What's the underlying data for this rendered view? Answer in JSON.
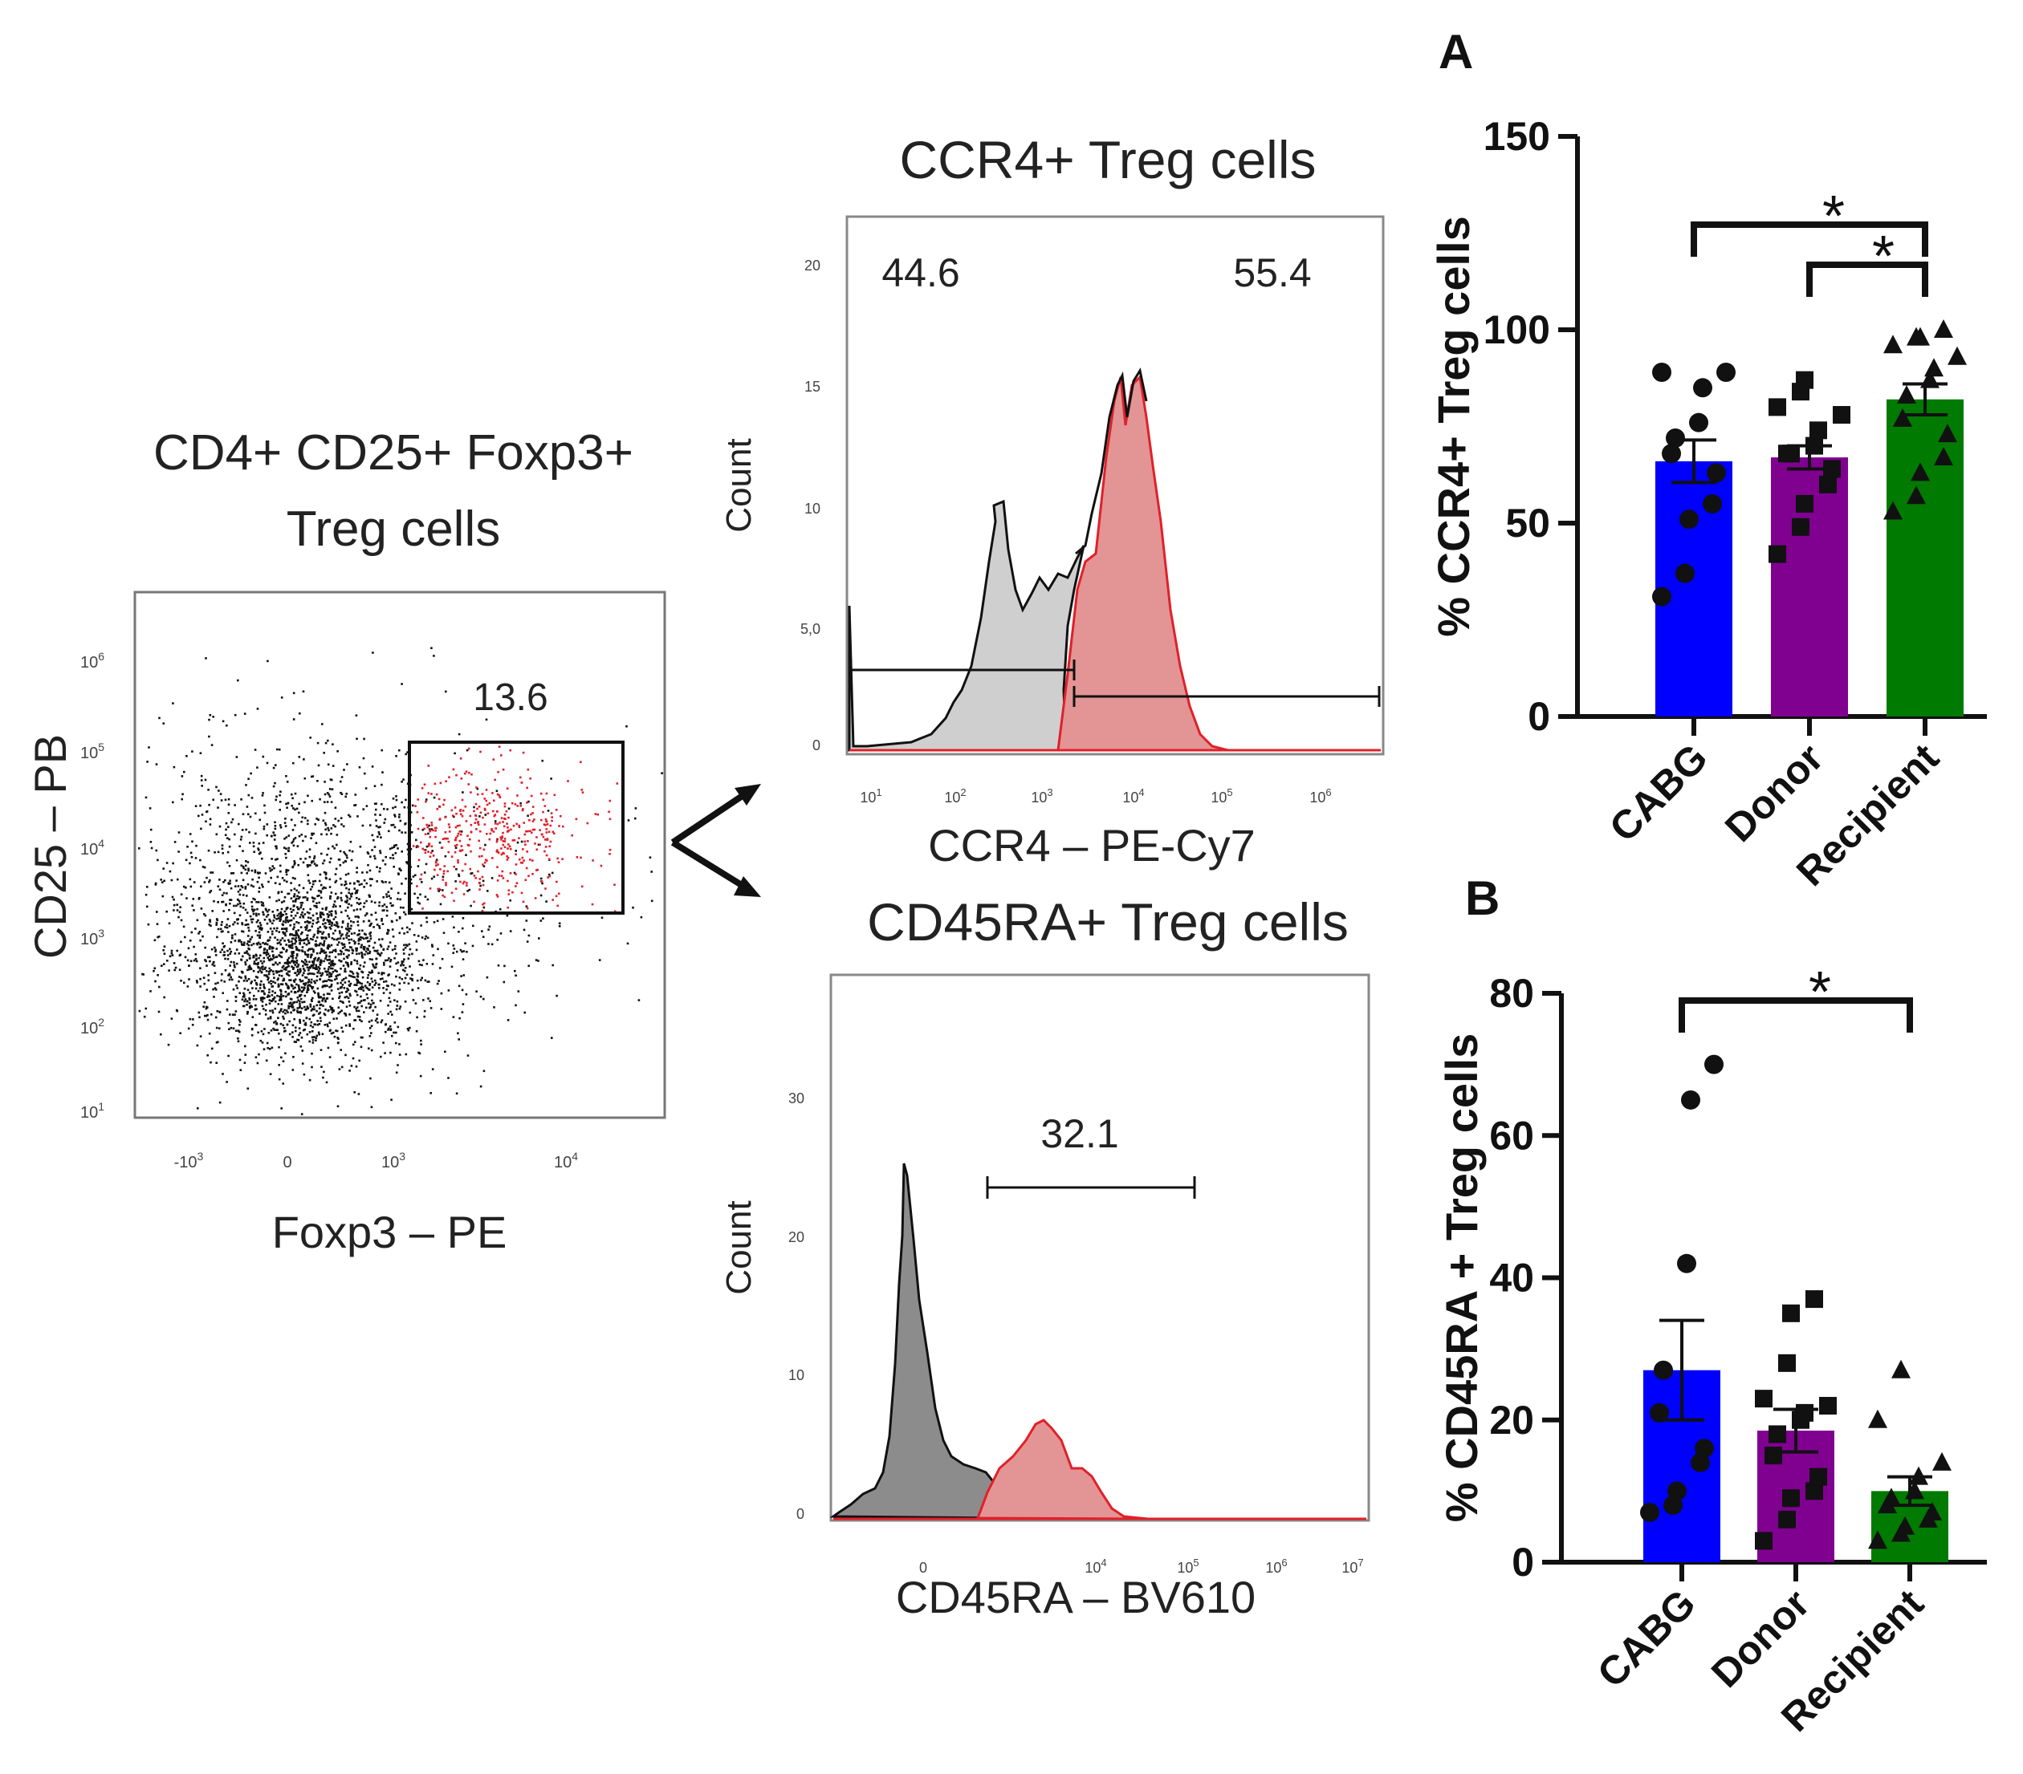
{
  "flow": {
    "dot_plot": {
      "title_line1": "CD4+ CD25+ Foxp3+",
      "title_line2": "Treg cells",
      "gate_value": "13.6",
      "xlabel": "Foxp3 – PE",
      "ylabel": "CD25 – PB",
      "x_ticks": [
        "-10",
        "0",
        "10",
        "10"
      ],
      "x_tick_sups": [
        "3",
        "",
        "3",
        "4"
      ],
      "y_ticks": [
        "10",
        "10",
        "10",
        "10",
        "10",
        "10"
      ],
      "y_tick_sups": [
        "1",
        "2",
        "3",
        "4",
        "5",
        "6"
      ],
      "colors": {
        "dots": "#111111",
        "gated": "#e0202a"
      }
    },
    "ccr4_hist": {
      "title": "CCR4+ Treg cells",
      "left_value": "44.6",
      "right_value": "55.4",
      "xlabel": "CCR4 – PE-Cy7",
      "ylabel": "Count",
      "y_ticks": [
        "0",
        "5,0",
        "10",
        "15",
        "20"
      ],
      "x_ticks": [
        "10",
        "10",
        "10",
        "10",
        "10",
        "10"
      ],
      "x_tick_sups": [
        "1",
        "2",
        "3",
        "4",
        "5",
        "6"
      ]
    },
    "cd45ra_hist": {
      "title": "CD45RA+ Treg cells",
      "gate_value": "32.1",
      "xlabel": "CD45RA – BV610",
      "ylabel": "Count",
      "y_ticks": [
        "0",
        "10",
        "20",
        "30"
      ],
      "x_ticks": [
        "0",
        "10",
        "10",
        "10",
        "10"
      ],
      "x_tick_sups": [
        "",
        "4",
        "5",
        "6",
        "7"
      ]
    }
  },
  "chart_data": [
    {
      "type": "bar",
      "panel_label": "A",
      "categories": [
        "CABG",
        "Donor",
        "Recipient"
      ],
      "values": [
        66,
        67,
        82
      ],
      "sem": [
        5.5,
        3,
        4
      ],
      "ylabel": "% CCR4+ Treg cells",
      "ylim": [
        0,
        150
      ],
      "y_ticks": [
        "0",
        "50",
        "100",
        "150"
      ],
      "colors": [
        "#0000ff",
        "#800090",
        "#007a00"
      ],
      "markers": [
        "circle",
        "square",
        "triangle"
      ],
      "points": [
        [
          31,
          37,
          51,
          55,
          63,
          68,
          72,
          76,
          85,
          89,
          89
        ],
        [
          42,
          49,
          55,
          60,
          64,
          68,
          68,
          70,
          74,
          78,
          80,
          84,
          87
        ],
        [
          53,
          57,
          63,
          67,
          73,
          77,
          83,
          87,
          90,
          93,
          96,
          98,
          98,
          100
        ]
      ],
      "significance": [
        {
          "from": "CABG",
          "to": "Recipient",
          "label": "*"
        },
        {
          "from": "Donor",
          "to": "Recipient",
          "label": "*"
        }
      ]
    },
    {
      "type": "bar",
      "panel_label": "B",
      "categories": [
        "CABG",
        "Donor",
        "Recipient"
      ],
      "values": [
        27,
        18.5,
        10
      ],
      "sem": [
        7,
        3,
        2
      ],
      "ylabel": "% CD45RA + Treg cells",
      "ylim": [
        0,
        80
      ],
      "y_ticks": [
        "0",
        "20",
        "40",
        "60",
        "80"
      ],
      "colors": [
        "#0000ff",
        "#800090",
        "#007a00"
      ],
      "markers": [
        "circle",
        "square",
        "triangle"
      ],
      "points": [
        [
          7,
          8,
          10,
          14,
          16,
          21,
          27,
          42,
          65,
          70
        ],
        [
          3,
          6,
          9,
          10,
          12,
          15,
          18,
          20,
          21,
          22,
          23,
          28,
          35,
          37
        ],
        [
          3,
          4,
          5,
          6,
          7,
          8,
          9,
          10,
          12,
          14,
          20,
          27
        ]
      ],
      "significance": [
        {
          "from": "CABG",
          "to": "Recipient",
          "label": "*"
        }
      ]
    }
  ]
}
